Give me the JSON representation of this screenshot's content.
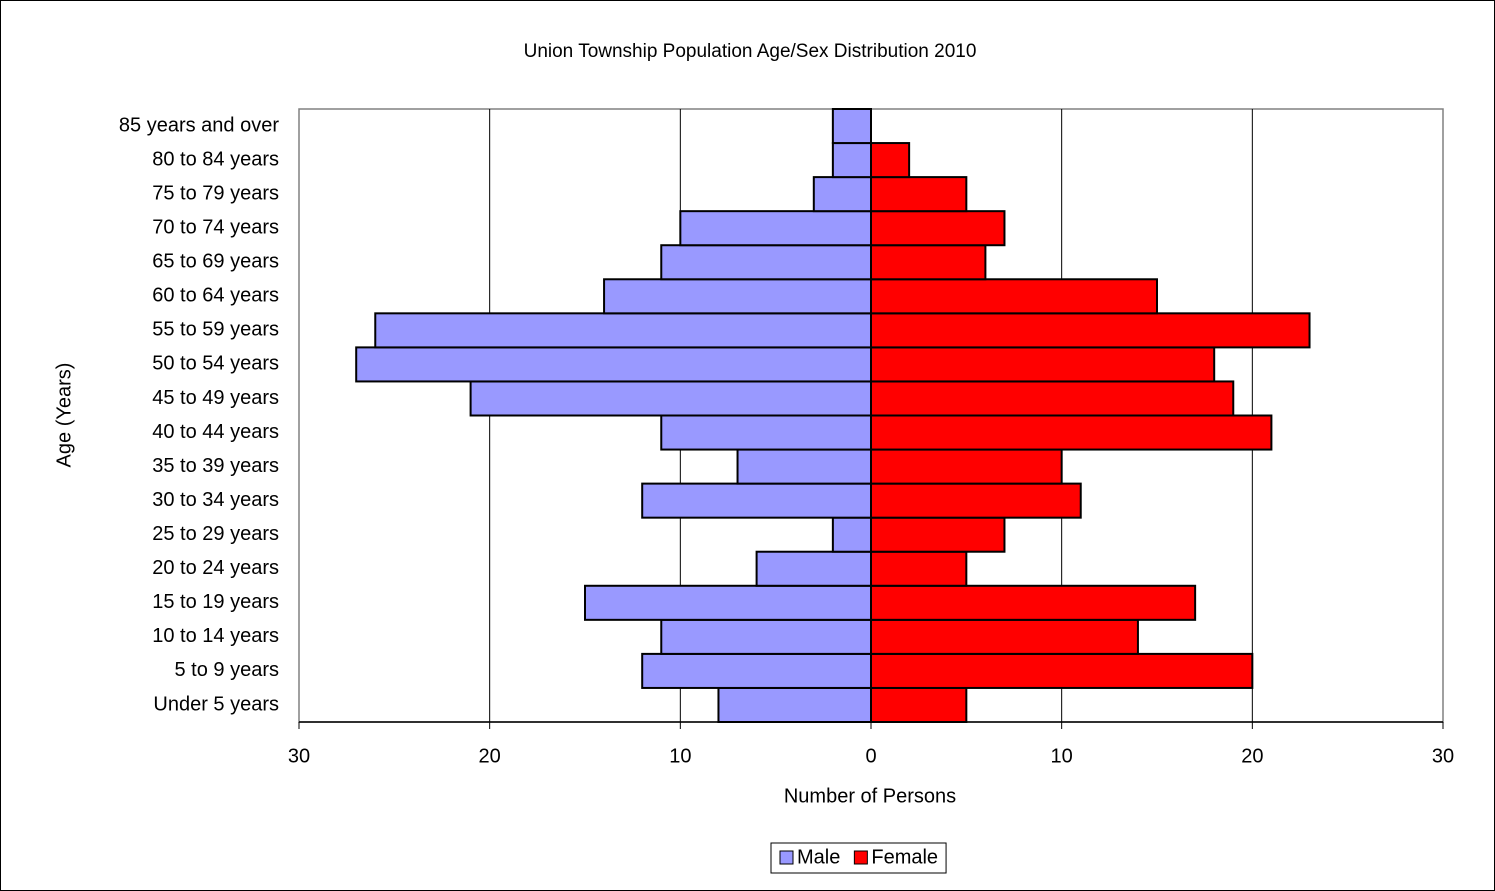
{
  "chart_data": {
    "type": "pyramid",
    "title": "Union Township Population Age/Sex Distribution 2010",
    "x_label": "Number of Persons",
    "y_label": "Age (Years)",
    "categories": [
      "Under 5 years",
      "5 to 9 years",
      "10 to 14 years",
      "15 to 19 years",
      "20 to 24 years",
      "25 to 29 years",
      "30 to 34 years",
      "35 to 39 years",
      "40 to 44 years",
      "45 to 49 years",
      "50 to 54 years",
      "55 to 59 years",
      "60 to 64 years",
      "65 to 69 years",
      "70 to 74 years",
      "75 to 79 years",
      "80 to 84 years",
      "85 years and over"
    ],
    "series": [
      {
        "name": "Male",
        "color": "#9999ff",
        "values": [
          -8,
          -12,
          -11,
          -15,
          -6,
          -2,
          -12,
          -7,
          -11,
          -21,
          -27,
          -26,
          -14,
          -11,
          -10,
          -3,
          -2,
          -2
        ]
      },
      {
        "name": "Female",
        "color": "#ff0000",
        "values": [
          5,
          20,
          14,
          17,
          5,
          7,
          11,
          10,
          21,
          19,
          18,
          23,
          15,
          6,
          7,
          5,
          2,
          0
        ]
      }
    ],
    "xlim": [
      -30,
      30
    ],
    "xticks": [
      {
        "value": -30,
        "label": "30"
      },
      {
        "value": -20,
        "label": "20"
      },
      {
        "value": -10,
        "label": "10"
      },
      0,
      10,
      20,
      30
    ],
    "negative_tick_color": "#ff0000",
    "grid": true,
    "legend": "bottom"
  }
}
